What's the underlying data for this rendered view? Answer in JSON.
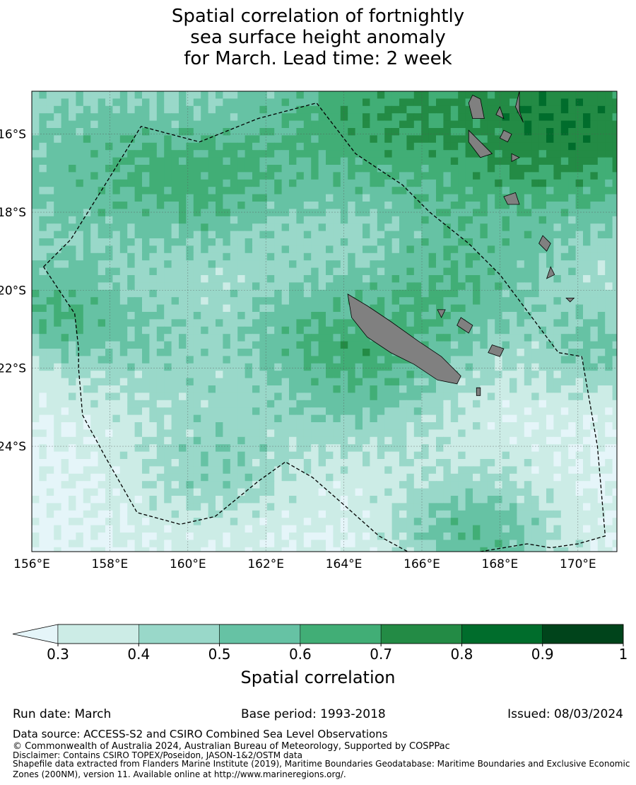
{
  "title": "Spatial correlation of fortnightly\nsea surface height anomaly\n for March. Lead time: 2 week",
  "map": {
    "lon_ticks": [
      "156°E",
      "158°E",
      "160°E",
      "162°E",
      "164°E",
      "166°E",
      "168°E",
      "170°E"
    ],
    "lat_ticks": [
      "16°S",
      "18°S",
      "20°S",
      "22°S",
      "24°S"
    ],
    "lon_range": [
      156,
      171
    ],
    "lat_range": [
      -26.7,
      -14.9
    ],
    "land_color": "#808080",
    "boundary": "dashed"
  },
  "colorbar": {
    "title": "Spatial correlation",
    "tick_labels": [
      "0.3",
      "0.4",
      "0.5",
      "0.6",
      "0.7",
      "0.8",
      "0.9",
      "1"
    ],
    "colors": [
      "#e5f5f9",
      "#ccece6",
      "#99d8c9",
      "#66c2a4",
      "#41ae76",
      "#238b45",
      "#006d2c",
      "#00441b"
    ],
    "extend": "min"
  },
  "footer": {
    "run_date": "Run date: March",
    "base_period": "Base period: 1993-2018",
    "issued": "Issued: 08/03/2024",
    "data_source": "Data source: ACCESS-S2 and CSIRO Combined Sea Level Observations",
    "copyright": "© Commonwealth of Australia 2024, Australian Bureau of Meteorology, Supported by COSPPac",
    "disclaimer": "Disclaimer: Contains CSIRO TOPEX/Poseidon, JASON-1&2/OSTM data",
    "shapefile": "Shapefile data extracted from Flanders Marine Institute (2019), Maritime Boundaries Geodatabase: Maritime Boundaries and Exclusive Economic Zones (200NM), version 11. Available online at http://www.marineregions.org/."
  }
}
